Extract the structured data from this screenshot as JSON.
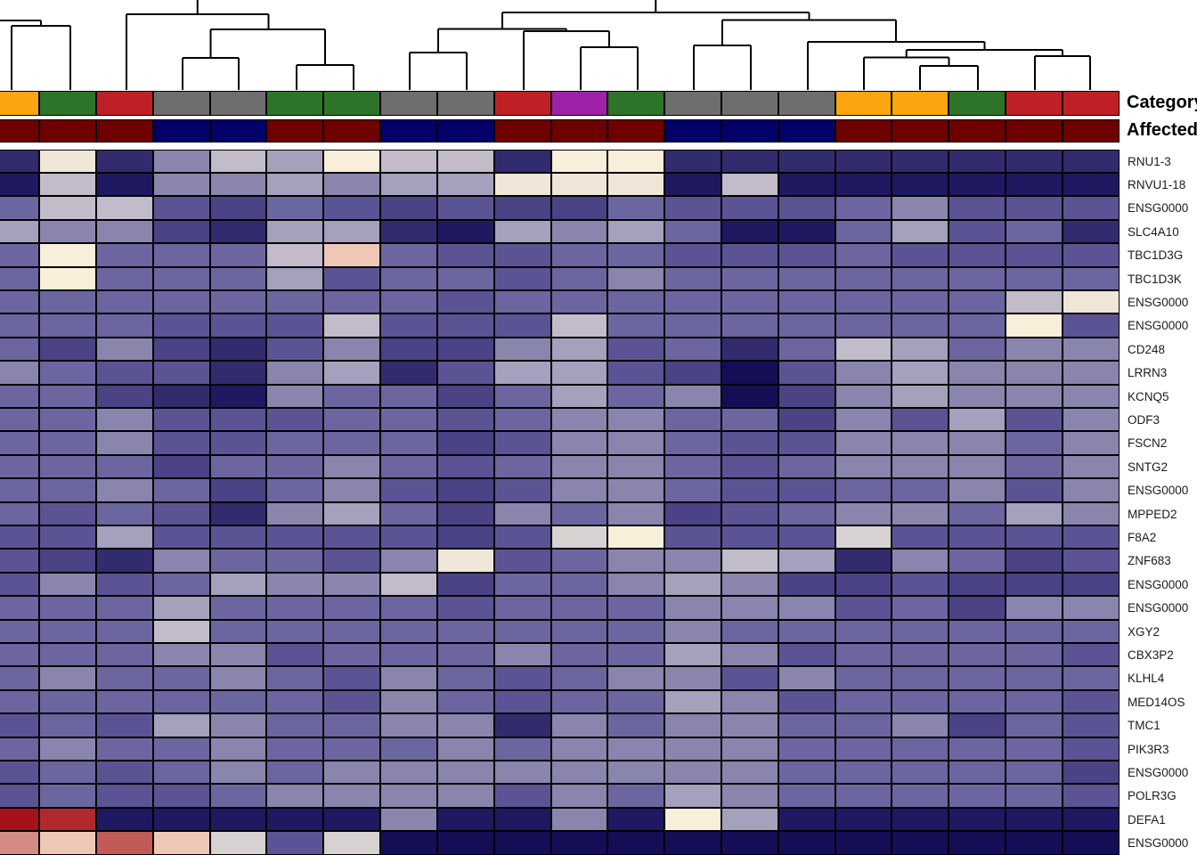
{
  "annotations": {
    "category": {
      "label": "Category",
      "values": [
        "orange",
        "green",
        "red",
        "gray",
        "gray",
        "green",
        "green",
        "gray",
        "gray",
        "red",
        "purple",
        "green",
        "gray",
        "gray",
        "gray",
        "orange",
        "orange",
        "green",
        "red",
        "red"
      ],
      "colors": {
        "orange": "#FBA50F",
        "green": "#2E7428",
        "red": "#BF2026",
        "gray": "#6E6E6E",
        "purple": "#9E22A8"
      }
    },
    "affected": {
      "label": "Affected",
      "values": [
        "yes",
        "yes",
        "yes",
        "no",
        "no",
        "yes",
        "yes",
        "no",
        "no",
        "yes",
        "yes",
        "yes",
        "no",
        "no",
        "no",
        "yes",
        "yes",
        "yes",
        "yes",
        "yes"
      ],
      "colors": {
        "yes": "#6F0000",
        "no": "#010168"
      }
    }
  },
  "chart_data": {
    "type": "heatmap",
    "title": "",
    "columns": 20,
    "row_labels": [
      "RNU1-3",
      "RNVU1-18",
      "ENSG0000",
      "SLC4A10",
      "TBC1D3G",
      "TBC1D3K",
      "ENSG0000",
      "ENSG0000",
      "CD248",
      "LRRN3",
      "KCNQ5",
      "ODF3",
      "FSCN2",
      "SNTG2",
      "ENSG0000",
      "MPPED2",
      "F8A2",
      "ZNF683",
      "ENSG0000",
      "ENSG0000",
      "XGY2",
      "CBX3P2",
      "KLHL4",
      "MED14OS",
      "TMC1",
      "PIK3R3",
      "ENSG0000",
      "POLR3G",
      "DEFA1",
      "ENSG0000"
    ],
    "scale_note": "cell values are color-level indices 0 (dark navy, low) through 16 (red, high) into palette",
    "palette": [
      "#140E57",
      "#1E1961",
      "#322C6F",
      "#4A4385",
      "#5B5494",
      "#6C66A0",
      "#8A85AD",
      "#A5A0BC",
      "#C2BCCA",
      "#D8D1D2",
      "#EFE6D8",
      "#F8EEDA",
      "#EFC7B7",
      "#D28C84",
      "#C05B55",
      "#B02A2C",
      "#A5121A"
    ],
    "values": [
      [
        2,
        10,
        2,
        6,
        8,
        7,
        11,
        8,
        8,
        2,
        11,
        11,
        2,
        2,
        2,
        2,
        2,
        2,
        2,
        2
      ],
      [
        1,
        8,
        1,
        6,
        6,
        7,
        6,
        7,
        7,
        10,
        10,
        10,
        1,
        8,
        1,
        1,
        1,
        1,
        1,
        1
      ],
      [
        5,
        8,
        8,
        4,
        3,
        5,
        4,
        3,
        4,
        3,
        3,
        5,
        4,
        4,
        4,
        5,
        6,
        4,
        4,
        4
      ],
      [
        7,
        6,
        6,
        3,
        2,
        7,
        7,
        2,
        1,
        7,
        6,
        7,
        5,
        1,
        1,
        5,
        7,
        4,
        5,
        2
      ],
      [
        5,
        11,
        5,
        5,
        5,
        8,
        12,
        5,
        4,
        4,
        5,
        5,
        4,
        4,
        4,
        5,
        4,
        4,
        4,
        4
      ],
      [
        5,
        11,
        5,
        5,
        5,
        7,
        4,
        5,
        5,
        4,
        5,
        6,
        5,
        5,
        5,
        5,
        5,
        5,
        5,
        5
      ],
      [
        5,
        5,
        5,
        5,
        5,
        5,
        5,
        5,
        4,
        5,
        5,
        5,
        5,
        5,
        5,
        5,
        5,
        5,
        8,
        10
      ],
      [
        5,
        5,
        5,
        4,
        4,
        4,
        8,
        4,
        4,
        4,
        8,
        5,
        5,
        5,
        5,
        5,
        5,
        5,
        11,
        4
      ],
      [
        5,
        3,
        6,
        3,
        2,
        4,
        6,
        3,
        3,
        6,
        7,
        4,
        5,
        2,
        5,
        8,
        7,
        5,
        6,
        6
      ],
      [
        6,
        5,
        4,
        4,
        2,
        6,
        7,
        2,
        4,
        7,
        7,
        4,
        3,
        0,
        4,
        6,
        7,
        6,
        6,
        6
      ],
      [
        5,
        5,
        3,
        2,
        1,
        6,
        5,
        5,
        3,
        5,
        7,
        5,
        6,
        0,
        3,
        6,
        7,
        6,
        6,
        6
      ],
      [
        5,
        5,
        6,
        4,
        4,
        4,
        5,
        5,
        4,
        5,
        6,
        6,
        5,
        5,
        3,
        6,
        4,
        7,
        4,
        6
      ],
      [
        5,
        5,
        6,
        4,
        4,
        5,
        5,
        5,
        3,
        4,
        6,
        6,
        5,
        4,
        4,
        6,
        6,
        6,
        5,
        6
      ],
      [
        5,
        5,
        5,
        3,
        5,
        5,
        6,
        5,
        4,
        5,
        6,
        6,
        5,
        4,
        5,
        6,
        6,
        6,
        5,
        6
      ],
      [
        5,
        5,
        6,
        5,
        3,
        5,
        6,
        4,
        3,
        4,
        6,
        6,
        5,
        4,
        4,
        5,
        5,
        6,
        4,
        6
      ],
      [
        5,
        4,
        5,
        4,
        2,
        6,
        7,
        5,
        3,
        6,
        5,
        6,
        3,
        4,
        5,
        6,
        6,
        5,
        7,
        6
      ],
      [
        4,
        4,
        7,
        4,
        4,
        4,
        4,
        4,
        3,
        4,
        9,
        11,
        4,
        4,
        4,
        9,
        4,
        4,
        4,
        4
      ],
      [
        4,
        3,
        2,
        6,
        5,
        5,
        4,
        6,
        10,
        4,
        5,
        6,
        6,
        8,
        7,
        2,
        6,
        5,
        3,
        4
      ],
      [
        4,
        6,
        4,
        5,
        7,
        6,
        6,
        8,
        3,
        5,
        5,
        6,
        7,
        6,
        3,
        3,
        4,
        3,
        3,
        3
      ],
      [
        5,
        5,
        5,
        7,
        5,
        5,
        5,
        5,
        4,
        5,
        5,
        5,
        6,
        6,
        6,
        4,
        5,
        3,
        6,
        6
      ],
      [
        5,
        5,
        5,
        8,
        5,
        5,
        5,
        5,
        5,
        5,
        5,
        5,
        6,
        5,
        5,
        5,
        5,
        5,
        5,
        5
      ],
      [
        5,
        5,
        5,
        6,
        6,
        4,
        5,
        5,
        5,
        6,
        5,
        5,
        7,
        6,
        4,
        5,
        5,
        5,
        5,
        4
      ],
      [
        5,
        6,
        5,
        5,
        6,
        5,
        4,
        6,
        5,
        4,
        5,
        6,
        6,
        4,
        6,
        5,
        5,
        5,
        5,
        5
      ],
      [
        5,
        5,
        5,
        5,
        5,
        5,
        4,
        6,
        5,
        4,
        5,
        5,
        7,
        6,
        4,
        5,
        5,
        5,
        5,
        4
      ],
      [
        4,
        5,
        4,
        7,
        6,
        5,
        5,
        6,
        6,
        2,
        6,
        5,
        6,
        6,
        5,
        5,
        6,
        3,
        5,
        4
      ],
      [
        5,
        6,
        5,
        5,
        6,
        5,
        5,
        5,
        6,
        5,
        6,
        6,
        6,
        6,
        5,
        5,
        5,
        5,
        5,
        4
      ],
      [
        4,
        5,
        4,
        5,
        6,
        5,
        6,
        6,
        6,
        6,
        6,
        6,
        6,
        6,
        5,
        5,
        5,
        5,
        5,
        3
      ],
      [
        4,
        5,
        4,
        4,
        5,
        6,
        6,
        6,
        6,
        4,
        6,
        5,
        7,
        6,
        5,
        5,
        5,
        5,
        5,
        4
      ],
      [
        16,
        15,
        1,
        1,
        1,
        1,
        1,
        6,
        1,
        1,
        6,
        1,
        11,
        7,
        1,
        1,
        1,
        1,
        1,
        1
      ],
      [
        13,
        12,
        14,
        12,
        9,
        4,
        9,
        0,
        0,
        0,
        0,
        0,
        0,
        0,
        0,
        0,
        0,
        0,
        0,
        0
      ]
    ],
    "dendrogram_segments": [
      [
        13,
        29,
        13,
        101
      ],
      [
        79,
        29,
        79,
        101
      ],
      [
        13,
        29,
        79,
        29
      ],
      [
        46,
        23,
        46,
        29
      ],
      [
        0,
        23,
        46,
        23
      ],
      [
        142,
        16,
        142,
        101
      ],
      [
        142,
        16,
        301.5,
        16
      ],
      [
        301.5,
        16,
        301.5,
        33
      ],
      [
        221.75,
        0,
        221.75,
        16
      ],
      [
        236.5,
        33,
        365,
        33
      ],
      [
        236.5,
        33,
        236.5,
        65
      ],
      [
        365,
        33,
        365,
        73
      ],
      [
        205,
        65,
        205,
        101
      ],
      [
        268,
        65,
        268,
        101
      ],
      [
        205,
        65,
        268,
        65
      ],
      [
        333,
        73,
        333,
        101
      ],
      [
        397,
        73,
        397,
        101
      ],
      [
        333,
        73,
        397,
        73
      ],
      [
        460,
        59,
        460,
        101
      ],
      [
        524,
        59,
        524,
        101
      ],
      [
        460,
        59,
        524,
        59
      ],
      [
        652,
        53,
        652,
        101
      ],
      [
        716,
        53,
        716,
        101
      ],
      [
        652,
        53,
        716,
        53
      ],
      [
        588,
        35,
        588,
        101
      ],
      [
        588,
        35,
        684,
        35
      ],
      [
        684,
        35,
        684,
        53
      ],
      [
        492,
        32.5,
        636,
        32.5
      ],
      [
        492,
        32.5,
        492,
        59
      ],
      [
        636,
        32.5,
        636,
        35
      ],
      [
        779,
        51,
        779,
        101
      ],
      [
        843,
        51,
        843,
        101
      ],
      [
        779,
        51,
        843,
        51
      ],
      [
        1033,
        74,
        1033,
        101
      ],
      [
        1098,
        74,
        1098,
        101
      ],
      [
        1033,
        74,
        1098,
        74
      ],
      [
        970,
        64.5,
        970,
        101
      ],
      [
        970,
        64.5,
        1065.5,
        64.5
      ],
      [
        1065.5,
        64.5,
        1065.5,
        74
      ],
      [
        1162,
        63,
        1162,
        101
      ],
      [
        1224,
        63,
        1224,
        101
      ],
      [
        1162,
        63,
        1224,
        63
      ],
      [
        1017.75,
        56,
        1193,
        56
      ],
      [
        1017.75,
        56,
        1017.75,
        64.5
      ],
      [
        1193,
        56,
        1193,
        63
      ],
      [
        907,
        47,
        907,
        101
      ],
      [
        907,
        47,
        1105.5,
        47
      ],
      [
        1105.5,
        47,
        1105.5,
        56
      ],
      [
        811,
        22.5,
        1006,
        22.5
      ],
      [
        811,
        22.5,
        811,
        51
      ],
      [
        1006,
        22.5,
        1006,
        47
      ],
      [
        564,
        14,
        908.5,
        14
      ],
      [
        564,
        14,
        564,
        32.5
      ],
      [
        908.5,
        14,
        908.5,
        22.5
      ],
      [
        736.25,
        0,
        736.25,
        14
      ]
    ]
  }
}
